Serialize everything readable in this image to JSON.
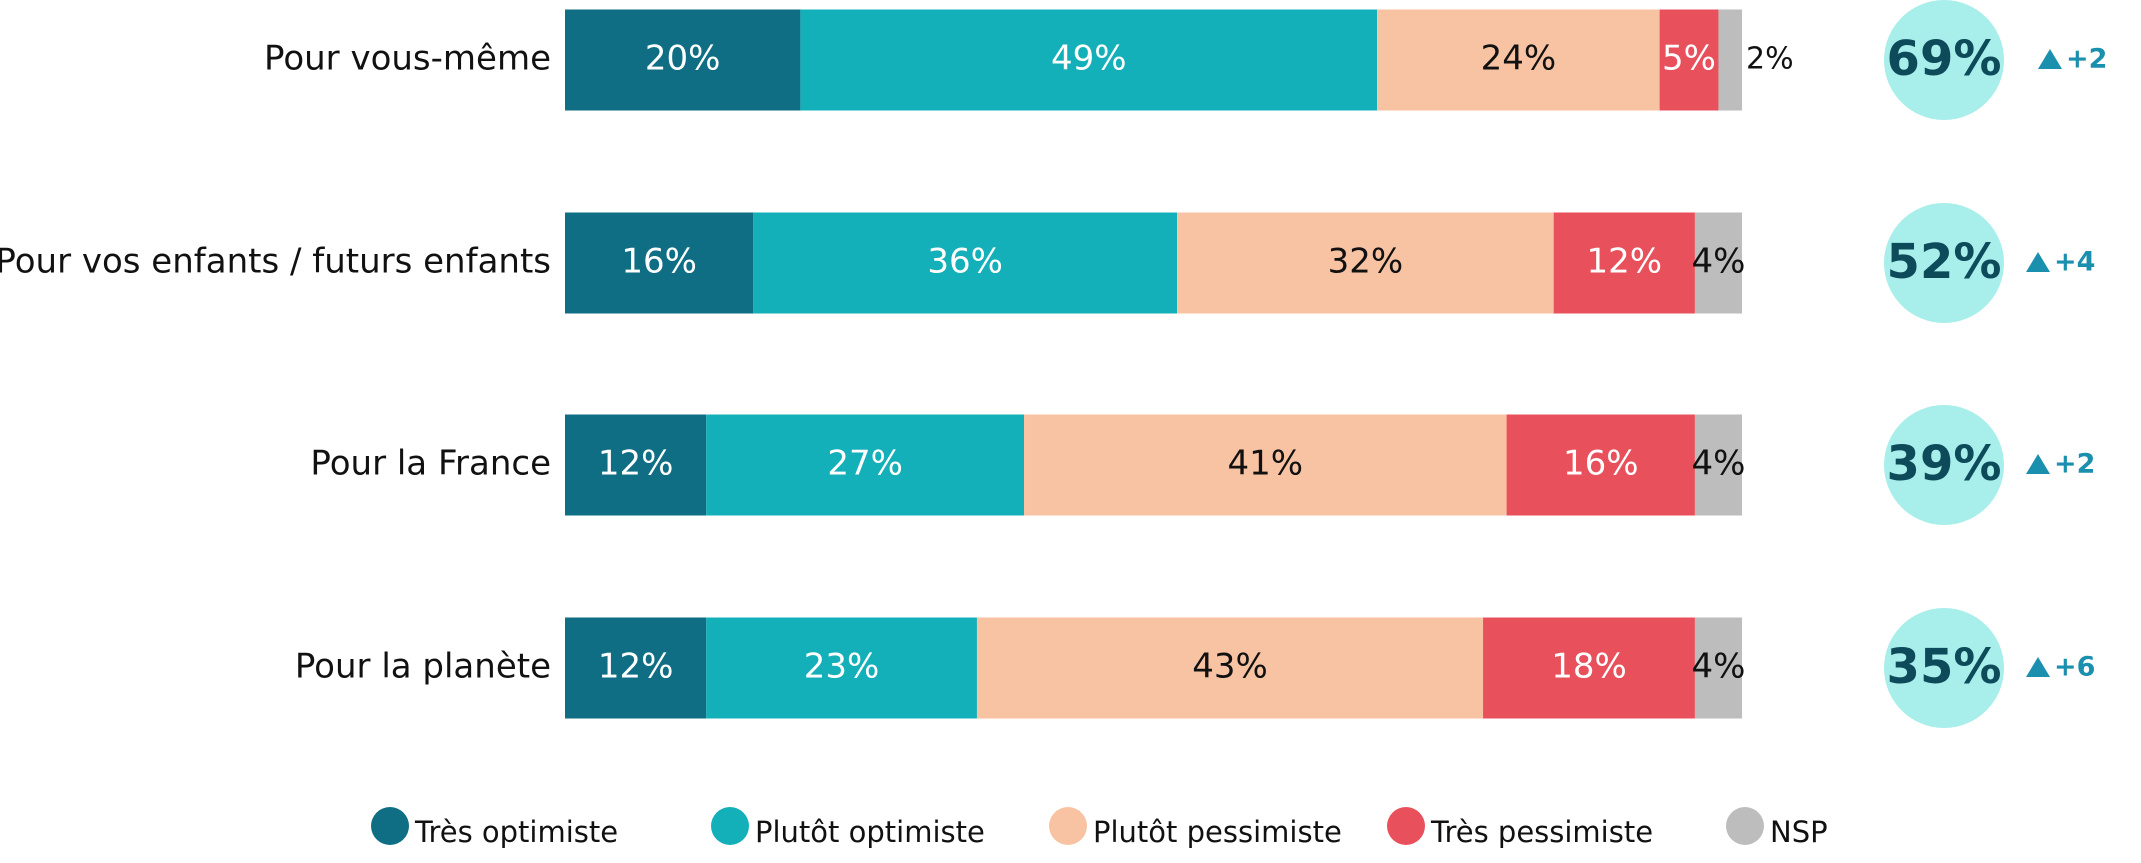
{
  "chart_data": {
    "type": "stacked_bar_horizontal",
    "categories": [
      "Pour vous-même",
      "Pour vos enfants / futurs enfants",
      "Pour la France",
      "Pour la planète"
    ],
    "series": [
      {
        "name": "Très optimiste",
        "color": "#0f6e84",
        "label_color": "#ffffff",
        "values": [
          20,
          16,
          12,
          12
        ],
        "value_labels": [
          "20%",
          "16%",
          "12%",
          "12%"
        ]
      },
      {
        "name": "Plutôt optimiste",
        "color": "#14b0b9",
        "label_color": "#ffffff",
        "values": [
          49,
          36,
          27,
          23
        ],
        "value_labels": [
          "49%",
          "36%",
          "27%",
          "23%"
        ]
      },
      {
        "name": "Plutôt pessimiste",
        "color": "#f8c3a3",
        "label_color": "#111111",
        "values": [
          24,
          32,
          41,
          43
        ],
        "value_labels": [
          "24%",
          "32%",
          "41%",
          "43%"
        ]
      },
      {
        "name": "Très pessimiste",
        "color": "#e8505b",
        "label_color": "#ffffff",
        "values": [
          5,
          12,
          16,
          18
        ],
        "value_labels": [
          "5%",
          "12%",
          "16%",
          "18%"
        ]
      },
      {
        "name": "NSP",
        "color": "#bdbdbd",
        "label_color": "#111111",
        "values": [
          2,
          4,
          4,
          4
        ],
        "value_labels": [
          "2%",
          "4%",
          "4%",
          "4%"
        ]
      }
    ],
    "totals": {
      "color": "#a8eeea",
      "values": [
        69,
        52,
        39,
        35
      ],
      "value_labels": [
        "69%",
        "52%",
        "39%",
        "35%"
      ]
    },
    "changes": {
      "color": "#1b8fae",
      "values": [
        2,
        4,
        2,
        6
      ],
      "value_labels": [
        "+2",
        "+4",
        "+2",
        "+6"
      ]
    }
  }
}
